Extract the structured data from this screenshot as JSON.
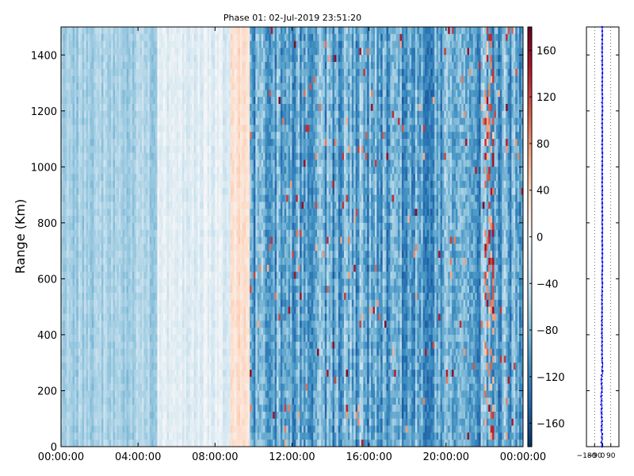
{
  "chart_data": [
    {
      "type": "heatmap",
      "title": "Phase 01: 02-Jul-2019 23:51:20",
      "ylabel": "Range (Km)",
      "xlabel": "",
      "x_tick_labels": [
        "00:00:00",
        "04:00:00",
        "08:00:00",
        "12:00:00",
        "16:00:00",
        "20:00:00",
        "00:00:00"
      ],
      "x_tick_hours": [
        0,
        4,
        8,
        12,
        16,
        20,
        24
      ],
      "xlim_hours": [
        0,
        24
      ],
      "y_ticks": [
        0,
        200,
        400,
        600,
        800,
        1000,
        1200,
        1400
      ],
      "ylim": [
        0,
        1500
      ],
      "colorbar": {
        "colormap": "RdBu_r",
        "range": [
          -180,
          180
        ],
        "ticks": [
          160,
          120,
          80,
          40,
          0,
          -40,
          -80,
          -120,
          -160
        ],
        "tick_labels": [
          "160",
          "120",
          "80",
          "40",
          "0",
          "−40",
          "−80",
          "−120",
          "−160"
        ]
      },
      "phase_profile_by_hour": [
        {
          "hours": [
            0,
            5
          ],
          "phase": -60
        },
        {
          "hours": [
            5,
            8.8
          ],
          "phase": -20
        },
        {
          "hours": [
            8.8,
            9.8
          ],
          "phase": 25
        },
        {
          "hours": [
            9.8,
            24
          ],
          "phase": -95
        }
      ]
    },
    {
      "type": "line",
      "xlim": [
        -180,
        180
      ],
      "ylim": [
        0,
        1500
      ],
      "x_tick_labels": [
        "−180",
        "−90",
        "0",
        "90"
      ],
      "x_ticks": [
        -180,
        -90,
        0,
        90
      ],
      "grid": "vertical dotted",
      "series_color": "#0000ff",
      "profile": [
        {
          "range": 0,
          "phase": -10
        },
        {
          "range": 100,
          "phase": -12
        },
        {
          "range": 200,
          "phase": -15
        },
        {
          "range": 280,
          "phase": -5
        },
        {
          "range": 350,
          "phase": -8
        },
        {
          "range": 500,
          "phase": -8
        },
        {
          "range": 600,
          "phase": -5
        },
        {
          "range": 700,
          "phase": -5
        },
        {
          "range": 800,
          "phase": -5
        },
        {
          "range": 900,
          "phase": -5
        },
        {
          "range": 1000,
          "phase": -5
        },
        {
          "range": 1100,
          "phase": -5
        },
        {
          "range": 1200,
          "phase": -5
        },
        {
          "range": 1300,
          "phase": -5
        },
        {
          "range": 1400,
          "phase": -5
        },
        {
          "range": 1500,
          "phase": -5
        }
      ]
    }
  ]
}
